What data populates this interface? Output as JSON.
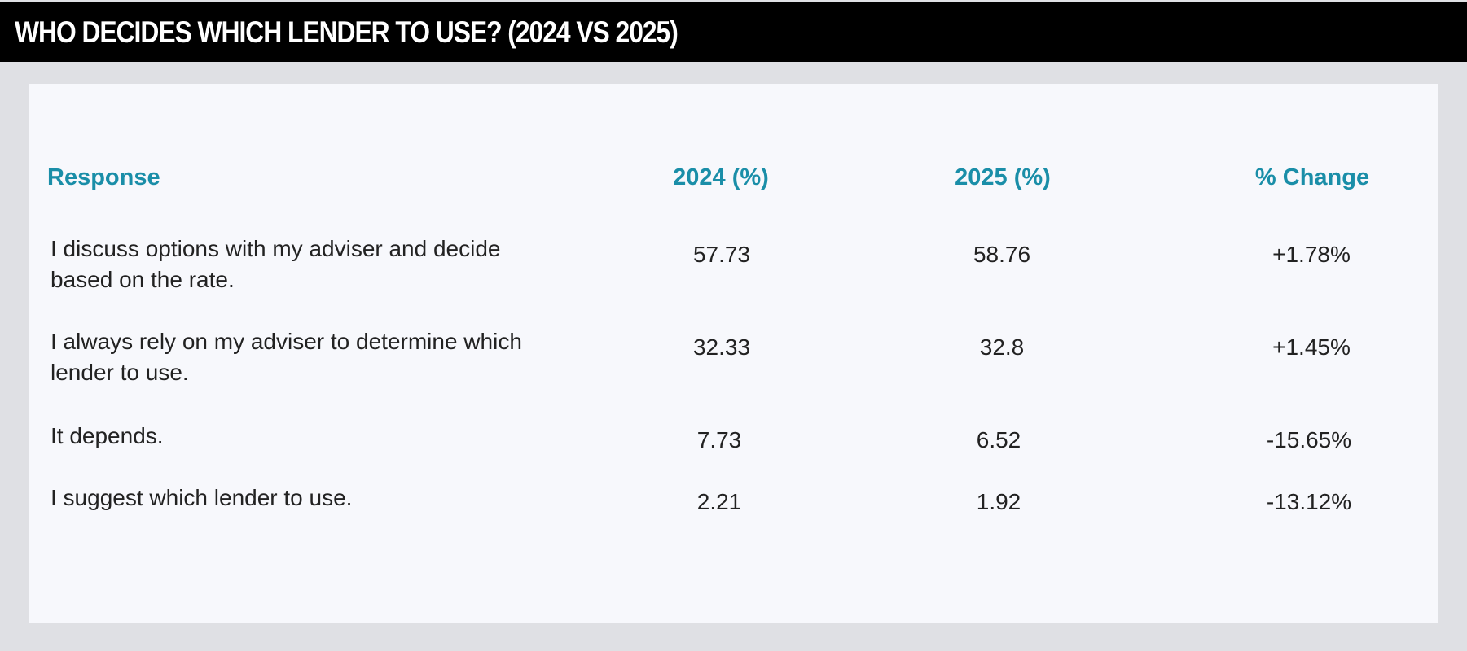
{
  "title": "WHO DECIDES WHICH LENDER TO USE? (2024 VS 2025)",
  "colors": {
    "title_bar": "#000000",
    "title_text": "#ffffff",
    "background": "#dfe0e4",
    "panel": "#f7f8fc",
    "header_text": "#1a8ea8",
    "body_text": "#222222"
  },
  "chart_data": {
    "type": "table",
    "title": "WHO DECIDES WHICH LENDER TO USE? (2024 VS 2025)",
    "columns": [
      "Response",
      "2024 (%)",
      "2025 (%)",
      "% Change"
    ],
    "rows": [
      {
        "response": "I discuss options with my adviser and decide based on the rate.",
        "y2024": "57.73",
        "y2025": "58.76",
        "change": "+1.78%"
      },
      {
        "response": "I always rely on my adviser to determine which lender to use.",
        "y2024": "32.33",
        "y2025": "32.8",
        "change": "+1.45%"
      },
      {
        "response": "It depends.",
        "y2024": "7.73",
        "y2025": "6.52",
        "change": "-15.65%"
      },
      {
        "response": "I suggest which lender to use.",
        "y2024": "2.21",
        "y2025": "1.92",
        "change": "-13.12%"
      }
    ]
  }
}
